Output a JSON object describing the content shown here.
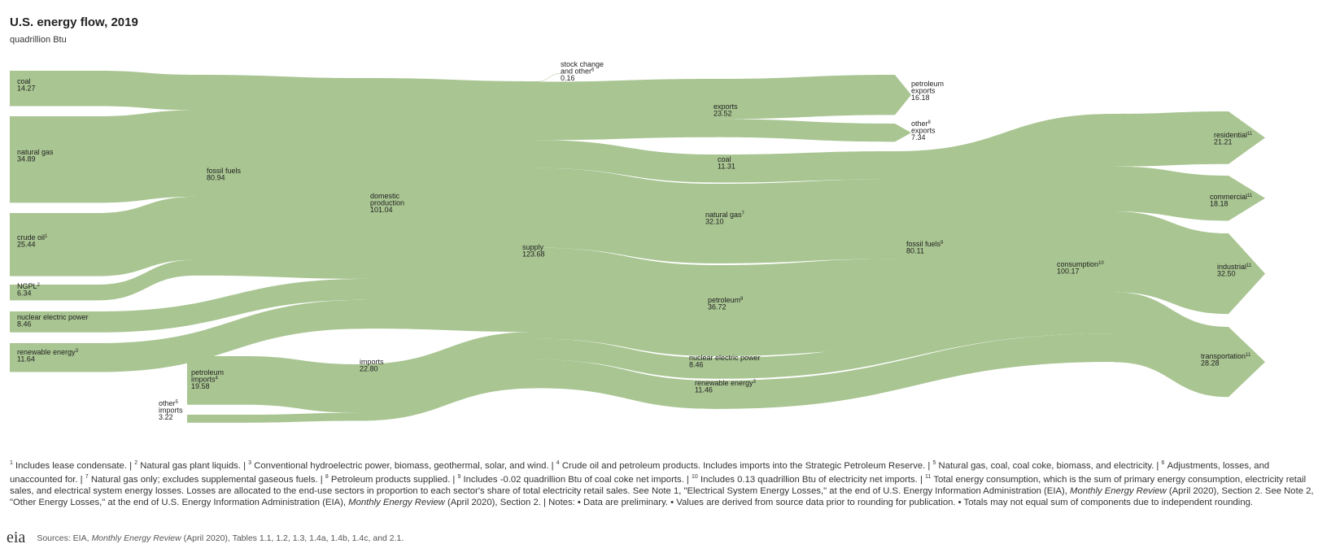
{
  "header": {
    "title": "U.S. energy flow, 2019",
    "subtitle": "quadrillion Btu"
  },
  "nodes": [
    {
      "lines": [
        {
          "text": "coal"
        }
      ],
      "value": 14.27
    },
    {
      "lines": [
        {
          "text": "natural gas"
        }
      ],
      "value": 34.89
    },
    {
      "lines": [
        {
          "text": "crude oil",
          "note": "1"
        }
      ],
      "value": 25.44
    },
    {
      "lines": [
        {
          "text": "NGPL",
          "note": "2"
        }
      ],
      "value": 6.34
    },
    {
      "lines": [
        {
          "text": "nuclear electric power"
        }
      ],
      "value": 8.46
    },
    {
      "lines": [
        {
          "text": "renewable energy",
          "note": "3"
        }
      ],
      "value": 11.64
    },
    {
      "lines": [
        {
          "text": "fossil fuels"
        }
      ],
      "value": 80.94
    },
    {
      "lines": [
        {
          "text": "domestic"
        },
        {
          "text": "production"
        }
      ],
      "value": 101.04
    },
    {
      "lines": [
        {
          "text": "petroleum"
        },
        {
          "text": "imports",
          "note": "4"
        }
      ],
      "value": 19.58
    },
    {
      "lines": [
        {
          "text": "other",
          "note": "5"
        },
        {
          "text": "imports"
        }
      ],
      "value": 3.22
    },
    {
      "lines": [
        {
          "text": "imports"
        }
      ],
      "value": 22.8,
      "value_label": "22.80"
    },
    {
      "lines": [
        {
          "text": "supply"
        }
      ],
      "value": 123.68
    },
    {
      "lines": [
        {
          "text": "stock change"
        },
        {
          "text": "and other",
          "note": "6"
        }
      ],
      "value": 0.16
    },
    {
      "lines": [
        {
          "text": "exports"
        }
      ],
      "value": 23.52
    },
    {
      "lines": [
        {
          "text": "petroleum"
        },
        {
          "text": "exports"
        }
      ],
      "value": 16.18
    },
    {
      "lines": [
        {
          "text": "other",
          "note": "8"
        },
        {
          "text": "exports"
        }
      ],
      "value": 7.34
    },
    {
      "lines": [
        {
          "text": "coal"
        }
      ],
      "value": 11.31
    },
    {
      "lines": [
        {
          "text": "natural gas",
          "note": "7"
        }
      ],
      "value": 32.1,
      "value_label": "32.10"
    },
    {
      "lines": [
        {
          "text": "petroleum",
          "note": "8"
        }
      ],
      "value": 36.72
    },
    {
      "lines": [
        {
          "text": "nuclear electric power"
        }
      ],
      "value": 8.46
    },
    {
      "lines": [
        {
          "text": "renewable energy",
          "note": "3"
        }
      ],
      "value": 11.46
    },
    {
      "lines": [
        {
          "text": "fossil fuels",
          "note": "9"
        }
      ],
      "value": 80.11
    },
    {
      "lines": [
        {
          "text": "consumption",
          "note": "10"
        }
      ],
      "value": 100.17
    },
    {
      "lines": [
        {
          "text": "residential",
          "note": "11"
        }
      ],
      "value": 21.21
    },
    {
      "lines": [
        {
          "text": "commercial",
          "note": "11"
        }
      ],
      "value": 18.18
    },
    {
      "lines": [
        {
          "text": "industrial",
          "note": "11"
        }
      ],
      "value": 32.5,
      "value_label": "32.50"
    },
    {
      "lines": [
        {
          "text": "transportation",
          "note": "11"
        }
      ],
      "value": 28.28
    }
  ],
  "footnotes": {
    "separator": " | ",
    "items": [
      {
        "n": "1",
        "parts": [
          {
            "text": "Includes lease condensate."
          }
        ]
      },
      {
        "n": "2",
        "parts": [
          {
            "text": "Natural gas plant liquids."
          }
        ]
      },
      {
        "n": "3",
        "parts": [
          {
            "text": "Conventional hydroelectric power, biomass, geothermal, solar, and wind."
          }
        ]
      },
      {
        "n": "4",
        "parts": [
          {
            "text": "Crude oil and petroleum products. Includes imports into the Strategic Petroleum Reserve."
          }
        ]
      },
      {
        "n": "5",
        "parts": [
          {
            "text": "Natural gas, coal, coal coke, biomass, and electricity."
          }
        ]
      },
      {
        "n": "6",
        "parts": [
          {
            "text": "Adjustments, losses, and unaccounted for."
          }
        ]
      },
      {
        "n": "7",
        "parts": [
          {
            "text": "Natural gas only; excludes supplemental gaseous fuels."
          }
        ]
      },
      {
        "n": "8",
        "parts": [
          {
            "text": "Petroleum products supplied."
          }
        ]
      },
      {
        "n": "9",
        "parts": [
          {
            "text": "Includes -0.02 quadrillion Btu of coal coke net imports."
          }
        ]
      },
      {
        "n": "10",
        "parts": [
          {
            "text": "Includes 0.13 quadrillion Btu of electricity net imports."
          }
        ]
      },
      {
        "n": "11",
        "parts": [
          {
            "text": "Total energy consumption, which is the sum of primary energy consumption, electricity retail sales, and electrical system energy losses. Losses are allocated to the end-use sectors in proportion to each sector's share of total electricity retail sales. See Note 1, \"Electrical System Energy Losses,\" at the end of U.S. Energy Information Administration (EIA), "
          },
          {
            "text": "Monthly Energy Review",
            "italic": true
          },
          {
            "text": " (April 2020), Section 2. See Note 2, \"Other Energy Losses,\" at the end of U.S. Energy Information Administration (EIA), "
          },
          {
            "text": "Monthly Energy Review",
            "italic": true
          },
          {
            "text": " (April 2020), Section 2."
          }
        ]
      }
    ],
    "notes": "Notes: • Data are preliminary. • Values are derived from source data prior to rounding for publication. • Totals may not equal sum of components due to independent rounding."
  },
  "source": {
    "logo": "eia",
    "parts": [
      {
        "text": "Sources: EIA, "
      },
      {
        "text": "Monthly Energy Review",
        "italic": true
      },
      {
        "text": " (April 2020), Tables 1.1, 1.2, 1.3, 1.4a, 1.4b, 1.4c, and 2.1."
      }
    ]
  }
}
